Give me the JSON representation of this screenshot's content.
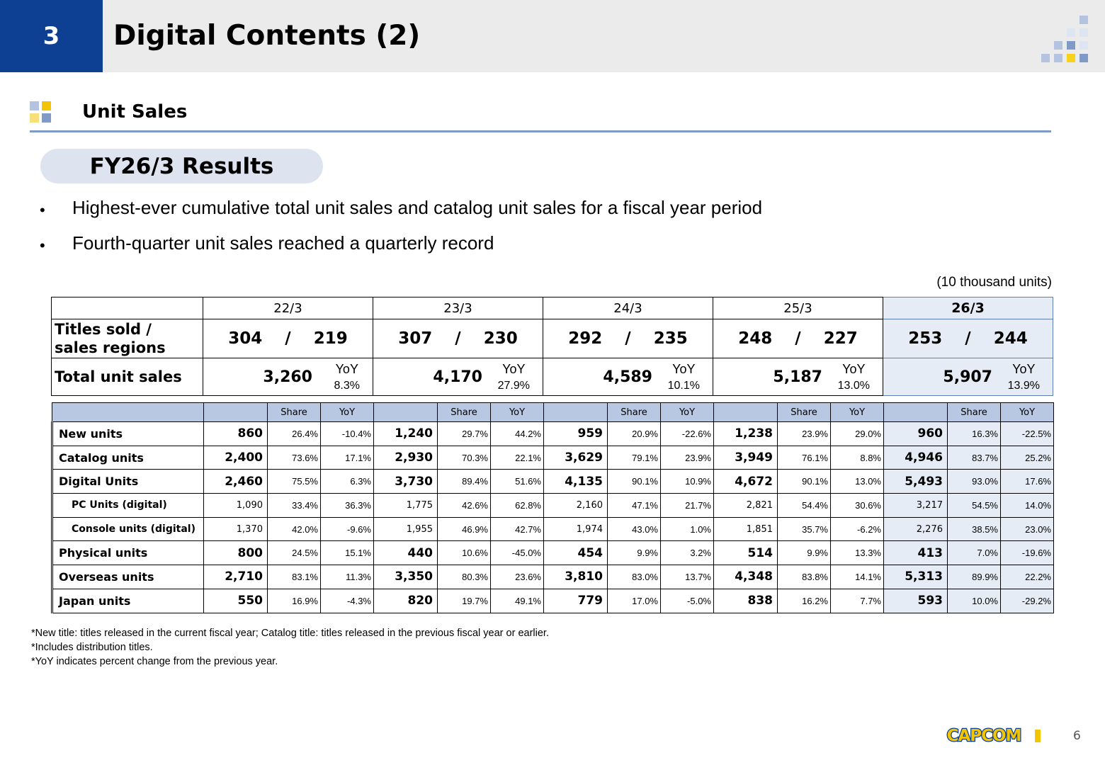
{
  "header": {
    "section_number": "3",
    "title": "Digital Contents (2)"
  },
  "section": {
    "title": "Unit Sales",
    "badge": "FY26/3 Results"
  },
  "bullets": [
    "Highest-ever cumulative total unit sales and catalog unit sales for a fiscal year period",
    "Fourth-quarter unit sales reached a quarterly record"
  ],
  "bullet_symbol": "•",
  "unit_note": "(10 thousand units)",
  "summary": {
    "years": [
      "22/3",
      "23/3",
      "24/3",
      "25/3",
      "26/3"
    ],
    "titles_label_1": "Titles sold /",
    "titles_label_2": "sales regions",
    "titles": [
      "304    /    219",
      "307    /    230",
      "292    /    235",
      "248    /    227",
      "253    /    244"
    ],
    "total_label": "Total unit sales",
    "yoy_label": "YoY",
    "totals": [
      {
        "value": "3,260",
        "yoy": "8.3%"
      },
      {
        "value": "4,170",
        "yoy": "27.9%"
      },
      {
        "value": "4,589",
        "yoy": "10.1%"
      },
      {
        "value": "5,187",
        "yoy": "13.0%"
      },
      {
        "value": "5,907",
        "yoy": "13.9%"
      }
    ]
  },
  "detail": {
    "col_share": "Share",
    "col_yoy": "YoY",
    "rows": [
      {
        "label": "New units",
        "sub": false,
        "cells": [
          [
            "860",
            "26.4%",
            "-10.4%"
          ],
          [
            "1,240",
            "29.7%",
            "44.2%"
          ],
          [
            "959",
            "20.9%",
            "-22.6%"
          ],
          [
            "1,238",
            "23.9%",
            "29.0%"
          ],
          [
            "960",
            "16.3%",
            "-22.5%"
          ]
        ]
      },
      {
        "label": "Catalog units",
        "sub": false,
        "cells": [
          [
            "2,400",
            "73.6%",
            "17.1%"
          ],
          [
            "2,930",
            "70.3%",
            "22.1%"
          ],
          [
            "3,629",
            "79.1%",
            "23.9%"
          ],
          [
            "3,949",
            "76.1%",
            "8.8%"
          ],
          [
            "4,946",
            "83.7%",
            "25.2%"
          ]
        ]
      },
      {
        "label": "Digital Units",
        "sub": false,
        "cells": [
          [
            "2,460",
            "75.5%",
            "6.3%"
          ],
          [
            "3,730",
            "89.4%",
            "51.6%"
          ],
          [
            "4,135",
            "90.1%",
            "10.9%"
          ],
          [
            "4,672",
            "90.1%",
            "13.0%"
          ],
          [
            "5,493",
            "93.0%",
            "17.6%"
          ]
        ]
      },
      {
        "label": "PC Units (digital)",
        "sub": true,
        "cells": [
          [
            "1,090",
            "33.4%",
            "36.3%"
          ],
          [
            "1,775",
            "42.6%",
            "62.8%"
          ],
          [
            "2,160",
            "47.1%",
            "21.7%"
          ],
          [
            "2,821",
            "54.4%",
            "30.6%"
          ],
          [
            "3,217",
            "54.5%",
            "14.0%"
          ]
        ]
      },
      {
        "label": "Console units (digital)",
        "sub": true,
        "cells": [
          [
            "1,370",
            "42.0%",
            "-9.6%"
          ],
          [
            "1,955",
            "46.9%",
            "42.7%"
          ],
          [
            "1,974",
            "43.0%",
            "1.0%"
          ],
          [
            "1,851",
            "35.7%",
            "-6.2%"
          ],
          [
            "2,276",
            "38.5%",
            "23.0%"
          ]
        ]
      },
      {
        "label": "Physical units",
        "sub": false,
        "cells": [
          [
            "800",
            "24.5%",
            "15.1%"
          ],
          [
            "440",
            "10.6%",
            "-45.0%"
          ],
          [
            "454",
            "9.9%",
            "3.2%"
          ],
          [
            "514",
            "9.9%",
            "13.3%"
          ],
          [
            "413",
            "7.0%",
            "-19.6%"
          ]
        ]
      },
      {
        "label": "Overseas units",
        "sub": false,
        "cells": [
          [
            "2,710",
            "83.1%",
            "11.3%"
          ],
          [
            "3,350",
            "80.3%",
            "23.6%"
          ],
          [
            "3,810",
            "83.0%",
            "13.7%"
          ],
          [
            "4,348",
            "83.8%",
            "14.1%"
          ],
          [
            "5,313",
            "89.9%",
            "22.2%"
          ]
        ]
      },
      {
        "label": "Japan units",
        "sub": false,
        "cells": [
          [
            "550",
            "16.9%",
            "-4.3%"
          ],
          [
            "820",
            "19.7%",
            "49.1%"
          ],
          [
            "779",
            "17.0%",
            "-5.0%"
          ],
          [
            "838",
            "16.2%",
            "7.7%"
          ],
          [
            "593",
            "10.0%",
            "-29.2%"
          ]
        ]
      }
    ]
  },
  "footnotes": [
    "*New title: titles released in the current fiscal year; Catalog title: titles released in the previous fiscal year or earlier.",
    "*Includes distribution titles.",
    "*YoY indicates percent change from the previous year."
  ],
  "logo_text": "CAPCOM",
  "page_number": "6",
  "colors": {
    "brand_blue": "#0d3f93",
    "highlight": "#e6ecf5",
    "header_row": "#b8c8e2",
    "rule": "#7f9ac6",
    "accent_yellow": "#f2c500"
  }
}
